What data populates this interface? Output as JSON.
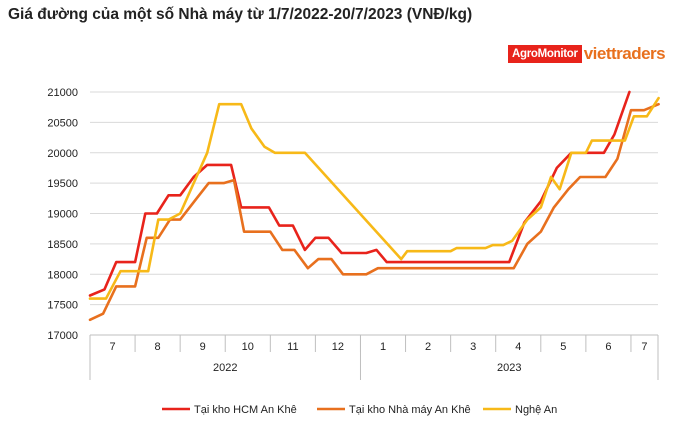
{
  "title": "Giá đường của một số Nhà máy từ 1/7/2022-20/7/2023 (VNĐ/kg)",
  "logo": {
    "agro": "AgroMonitor",
    "viet": "viettraders"
  },
  "chart_data": {
    "type": "line",
    "xlabel": "",
    "ylabel": "",
    "ylim": [
      17000,
      21000
    ],
    "yticks": [
      17000,
      17500,
      18000,
      18500,
      19000,
      19500,
      20000,
      20500,
      21000
    ],
    "month_ticks": [
      "7",
      "8",
      "9",
      "10",
      "11",
      "12",
      "1",
      "2",
      "3",
      "4",
      "5",
      "6",
      "7"
    ],
    "year_labels": [
      "2022",
      "2023"
    ],
    "grid": "horizontal",
    "legend_position": "bottom",
    "series": [
      {
        "name": "Tại kho HCM An Khê",
        "color": "#e8231b",
        "points": [
          [
            "2022-07-01",
            17650
          ],
          [
            "2022-07-11",
            17750
          ],
          [
            "2022-07-19",
            18200
          ],
          [
            "2022-08-01",
            18200
          ],
          [
            "2022-08-08",
            19000
          ],
          [
            "2022-08-16",
            19000
          ],
          [
            "2022-08-24",
            19300
          ],
          [
            "2022-09-01",
            19300
          ],
          [
            "2022-09-10",
            19600
          ],
          [
            "2022-09-19",
            19800
          ],
          [
            "2022-09-28",
            19800
          ],
          [
            "2022-10-05",
            19800
          ],
          [
            "2022-10-12",
            19100
          ],
          [
            "2022-10-22",
            19100
          ],
          [
            "2022-10-31",
            19100
          ],
          [
            "2022-11-07",
            18800
          ],
          [
            "2022-11-16",
            18800
          ],
          [
            "2022-11-24",
            18400
          ],
          [
            "2022-12-01",
            18600
          ],
          [
            "2022-12-10",
            18600
          ],
          [
            "2022-12-19",
            18350
          ],
          [
            "2022-12-27",
            18350
          ],
          [
            "2023-01-05",
            18350
          ],
          [
            "2023-01-12",
            18400
          ],
          [
            "2023-01-19",
            18200
          ],
          [
            "2023-02-01",
            18200
          ],
          [
            "2023-04-10",
            18200
          ],
          [
            "2023-04-20",
            18850
          ],
          [
            "2023-05-01",
            19200
          ],
          [
            "2023-05-12",
            19750
          ],
          [
            "2023-05-22",
            20000
          ],
          [
            "2023-06-01",
            20000
          ],
          [
            "2023-06-13",
            20000
          ],
          [
            "2023-06-20",
            20300
          ],
          [
            "2023-06-30",
            21000
          ]
        ]
      },
      {
        "name": "Tại kho Nhà máy An Khê",
        "color": "#e8701e",
        "points": [
          [
            "2022-07-01",
            17250
          ],
          [
            "2022-07-10",
            17350
          ],
          [
            "2022-07-19",
            17800
          ],
          [
            "2022-08-01",
            17800
          ],
          [
            "2022-08-09",
            18600
          ],
          [
            "2022-08-17",
            18600
          ],
          [
            "2022-08-25",
            18900
          ],
          [
            "2022-09-01",
            18900
          ],
          [
            "2022-09-12",
            19250
          ],
          [
            "2022-09-20",
            19500
          ],
          [
            "2022-09-30",
            19500
          ],
          [
            "2022-10-07",
            19550
          ],
          [
            "2022-10-14",
            18700
          ],
          [
            "2022-10-24",
            18700
          ],
          [
            "2022-11-01",
            18700
          ],
          [
            "2022-11-09",
            18400
          ],
          [
            "2022-11-17",
            18400
          ],
          [
            "2022-11-26",
            18100
          ],
          [
            "2022-12-03",
            18250
          ],
          [
            "2022-12-12",
            18250
          ],
          [
            "2022-12-20",
            18000
          ],
          [
            "2022-12-27",
            18000
          ],
          [
            "2023-01-05",
            18000
          ],
          [
            "2023-01-13",
            18100
          ],
          [
            "2023-02-01",
            18100
          ],
          [
            "2023-04-13",
            18100
          ],
          [
            "2023-04-22",
            18500
          ],
          [
            "2023-05-01",
            18700
          ],
          [
            "2023-05-10",
            19100
          ],
          [
            "2023-05-20",
            19400
          ],
          [
            "2023-05-28",
            19600
          ],
          [
            "2023-06-14",
            19600
          ],
          [
            "2023-06-22",
            19900
          ],
          [
            "2023-07-01",
            20700
          ],
          [
            "2023-07-10",
            20700
          ],
          [
            "2023-07-20",
            20800
          ]
        ]
      },
      {
        "name": "Nghệ An",
        "color": "#f7b918",
        "points": [
          [
            "2022-07-01",
            17600
          ],
          [
            "2022-07-12",
            17600
          ],
          [
            "2022-07-22",
            18050
          ],
          [
            "2022-08-01",
            18050
          ],
          [
            "2022-08-10",
            18050
          ],
          [
            "2022-08-17",
            18900
          ],
          [
            "2022-08-24",
            18900
          ],
          [
            "2022-09-01",
            19000
          ],
          [
            "2022-09-10",
            19500
          ],
          [
            "2022-09-19",
            20000
          ],
          [
            "2022-09-27",
            20800
          ],
          [
            "2022-10-05",
            20800
          ],
          [
            "2022-10-12",
            20800
          ],
          [
            "2022-10-19",
            20400
          ],
          [
            "2022-10-28",
            20100
          ],
          [
            "2022-11-04",
            20000
          ],
          [
            "2022-11-14",
            20000
          ],
          [
            "2022-11-24",
            20000
          ],
          [
            "2023-01-29",
            18250
          ],
          [
            "2023-02-02",
            18380
          ],
          [
            "2023-03-01",
            18380
          ],
          [
            "2023-03-05",
            18430
          ],
          [
            "2023-03-25",
            18430
          ],
          [
            "2023-03-30",
            18480
          ],
          [
            "2023-04-06",
            18480
          ],
          [
            "2023-04-12",
            18550
          ],
          [
            "2023-04-22",
            18900
          ],
          [
            "2023-05-01",
            19100
          ],
          [
            "2023-05-08",
            19600
          ],
          [
            "2023-05-14",
            19400
          ],
          [
            "2023-05-22",
            20000
          ],
          [
            "2023-06-01",
            20000
          ],
          [
            "2023-06-05",
            20200
          ],
          [
            "2023-06-20",
            20200
          ],
          [
            "2023-06-27",
            20200
          ],
          [
            "2023-07-03",
            20600
          ],
          [
            "2023-07-12",
            20600
          ],
          [
            "2023-07-20",
            20900
          ]
        ]
      }
    ]
  }
}
